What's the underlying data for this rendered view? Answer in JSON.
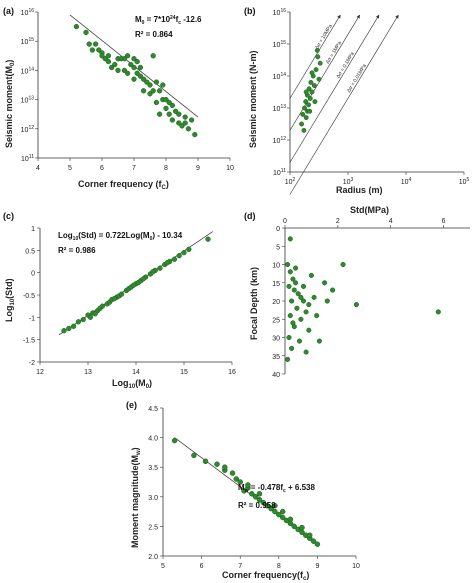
{
  "chart_data": [
    {
      "panel": "(a)",
      "type": "scatter",
      "xlabel": "Corner frequency (fc)",
      "ylabel": "Seismic moment(M0)",
      "xlim": [
        4,
        10
      ],
      "xticks": [
        "4",
        "5",
        "6",
        "7",
        "8",
        "9",
        "10"
      ],
      "ylim_log10": [
        11,
        16
      ],
      "yticks": [
        "10^11",
        "10^12",
        "10^13",
        "10^14",
        "10^15",
        "10^16"
      ],
      "y_scale": "log",
      "annotations": [
        "M0 = 7*10^24fc -12.6",
        "R² = 0.864"
      ],
      "points": [
        [
          5.2,
          15.5
        ],
        [
          5.5,
          15.3
        ],
        [
          5.6,
          14.9
        ],
        [
          5.7,
          14.7
        ],
        [
          5.8,
          14.9
        ],
        [
          5.9,
          14.7
        ],
        [
          6.0,
          14.6
        ],
        [
          6.0,
          14.5
        ],
        [
          6.1,
          14.4
        ],
        [
          6.2,
          14.5
        ],
        [
          6.2,
          14.3
        ],
        [
          6.3,
          14.1
        ],
        [
          6.4,
          14.2
        ],
        [
          6.5,
          14.0
        ],
        [
          6.5,
          14.4
        ],
        [
          6.6,
          14.4
        ],
        [
          6.7,
          14.0
        ],
        [
          6.7,
          14.4
        ],
        [
          6.8,
          14.5
        ],
        [
          6.9,
          14.2
        ],
        [
          7.0,
          14.4
        ],
        [
          7.0,
          14.1
        ],
        [
          7.1,
          13.9
        ],
        [
          7.1,
          14.3
        ],
        [
          7.2,
          13.8
        ],
        [
          7.2,
          14.1
        ],
        [
          7.3,
          13.7
        ],
        [
          7.4,
          13.6
        ],
        [
          7.5,
          13.5
        ],
        [
          7.5,
          13.2
        ],
        [
          7.6,
          14.5
        ],
        [
          7.6,
          13.3
        ],
        [
          7.7,
          12.9
        ],
        [
          7.7,
          13.6
        ],
        [
          7.8,
          12.5
        ],
        [
          7.8,
          13.3
        ],
        [
          7.9,
          13.0
        ],
        [
          8.0,
          12.7
        ],
        [
          8.0,
          13.0
        ],
        [
          8.1,
          12.5
        ],
        [
          8.2,
          12.8
        ],
        [
          8.2,
          12.3
        ],
        [
          8.3,
          12.6
        ],
        [
          8.4,
          12.2
        ],
        [
          8.4,
          12.5
        ],
        [
          8.5,
          12.1
        ],
        [
          8.6,
          12.4
        ],
        [
          8.7,
          12.0
        ],
        [
          8.8,
          12.3
        ],
        [
          8.9,
          11.8
        ],
        [
          6.8,
          13.9
        ],
        [
          7.3,
          13.3
        ],
        [
          7.9,
          13.5
        ],
        [
          8.1,
          12.9
        ],
        [
          8.6,
          12.2
        ],
        [
          7.0,
          13.7
        ]
      ],
      "fit_line_log10": [
        [
          5.0,
          15.9
        ],
        [
          9.0,
          12.4
        ]
      ]
    },
    {
      "panel": "(b)",
      "type": "scatter",
      "xlabel": "Radius (m)",
      "ylabel": "Seismic moment (N-m)",
      "xlim_log10": [
        2,
        5
      ],
      "xticks": [
        "10^2",
        "10^3",
        "10^4",
        "10^5"
      ],
      "ylim_log10": [
        11,
        16
      ],
      "yticks": [
        "10^11",
        "10^12",
        "10^13",
        "10^14",
        "10^15",
        "10^16"
      ],
      "reference_lines": [
        "Δσ = 10MPa",
        "Δσ = 1MPa",
        "Δσ = 0.1MPa",
        "Δσ = 0.01MPa"
      ],
      "points": [
        [
          2.2,
          12.5
        ],
        [
          2.22,
          12.8
        ],
        [
          2.25,
          13.0
        ],
        [
          2.27,
          13.2
        ],
        [
          2.28,
          12.7
        ],
        [
          2.3,
          13.4
        ],
        [
          2.3,
          12.9
        ],
        [
          2.32,
          13.1
        ],
        [
          2.33,
          13.6
        ],
        [
          2.35,
          13.3
        ],
        [
          2.36,
          13.8
        ],
        [
          2.38,
          13.5
        ],
        [
          2.4,
          14.0
        ],
        [
          2.42,
          13.7
        ],
        [
          2.45,
          14.2
        ],
        [
          2.48,
          14.6
        ],
        [
          2.5,
          13.9
        ],
        [
          2.52,
          14.4
        ],
        [
          2.24,
          12.3
        ],
        [
          2.28,
          13.5
        ],
        [
          2.34,
          12.9
        ],
        [
          2.38,
          14.1
        ],
        [
          2.43,
          13.2
        ],
        [
          2.47,
          14.8
        ]
      ]
    },
    {
      "panel": "(c)",
      "type": "scatter",
      "xlabel": "Log10(M0)",
      "ylabel": "Log10(Std)",
      "xlim": [
        12,
        16
      ],
      "xticks": [
        "12",
        "13",
        "14",
        "15",
        "16"
      ],
      "ylim": [
        -2,
        1
      ],
      "yticks": [
        "-2",
        "-1.5",
        "-1",
        "-0.5",
        "0",
        "0.5",
        "1"
      ],
      "annotations": [
        "Log10(Std) = 0.722Log(M0) - 10.34",
        "R² = 0.986"
      ],
      "points": [
        [
          12.5,
          -1.3
        ],
        [
          12.6,
          -1.25
        ],
        [
          12.7,
          -1.2
        ],
        [
          12.8,
          -1.1
        ],
        [
          12.9,
          -1.05
        ],
        [
          13.0,
          -0.95
        ],
        [
          13.05,
          -1.0
        ],
        [
          13.1,
          -0.9
        ],
        [
          13.2,
          -0.85
        ],
        [
          13.25,
          -0.8
        ],
        [
          13.3,
          -0.75
        ],
        [
          13.4,
          -0.7
        ],
        [
          13.45,
          -0.66
        ],
        [
          13.5,
          -0.6
        ],
        [
          13.6,
          -0.55
        ],
        [
          13.65,
          -0.52
        ],
        [
          13.7,
          -0.48
        ],
        [
          13.8,
          -0.4
        ],
        [
          13.85,
          -0.36
        ],
        [
          13.9,
          -0.32
        ],
        [
          14.0,
          -0.25
        ],
        [
          14.05,
          -0.22
        ],
        [
          14.1,
          -0.18
        ],
        [
          14.2,
          -0.1
        ],
        [
          14.3,
          -0.03
        ],
        [
          14.4,
          0.05
        ],
        [
          14.5,
          0.1
        ],
        [
          14.6,
          0.18
        ],
        [
          14.7,
          0.25
        ],
        [
          14.8,
          0.3
        ],
        [
          14.9,
          0.38
        ],
        [
          15.0,
          0.45
        ],
        [
          15.1,
          0.52
        ],
        [
          15.5,
          0.75
        ],
        [
          13.15,
          -0.92
        ],
        [
          13.55,
          -0.58
        ],
        [
          13.95,
          -0.28
        ],
        [
          14.15,
          -0.14
        ],
        [
          14.35,
          0.02
        ],
        [
          14.65,
          0.22
        ]
      ],
      "fit_line": [
        [
          12.4,
          -1.39
        ],
        [
          15.6,
          0.92
        ]
      ]
    },
    {
      "panel": "(d)",
      "type": "scatter",
      "xlabel": "Std(MPa)",
      "ylabel": "Focal Depth (km)",
      "xlim": [
        0,
        7
      ],
      "xticks": [
        "0",
        "2",
        "4",
        "6"
      ],
      "ylim": [
        0,
        40
      ],
      "yticks": [
        "0",
        "5",
        "10",
        "15",
        "20",
        "25",
        "30",
        "35",
        "40"
      ],
      "points": [
        [
          0.2,
          3
        ],
        [
          0.1,
          10
        ],
        [
          0.2,
          12
        ],
        [
          0.3,
          14
        ],
        [
          0.4,
          15
        ],
        [
          0.15,
          16
        ],
        [
          0.35,
          17
        ],
        [
          0.5,
          18
        ],
        [
          0.6,
          19
        ],
        [
          0.25,
          20
        ],
        [
          0.7,
          20
        ],
        [
          0.9,
          21
        ],
        [
          1.1,
          19
        ],
        [
          0.45,
          22
        ],
        [
          0.8,
          23
        ],
        [
          0.2,
          24
        ],
        [
          1.2,
          24
        ],
        [
          0.6,
          25
        ],
        [
          0.35,
          27
        ],
        [
          0.9,
          28
        ],
        [
          0.15,
          30
        ],
        [
          0.55,
          31
        ],
        [
          1.3,
          31
        ],
        [
          0.25,
          33
        ],
        [
          0.8,
          34
        ],
        [
          0.1,
          36
        ],
        [
          1.5,
          15
        ],
        [
          1.8,
          17
        ],
        [
          2.2,
          10
        ],
        [
          2.7,
          21
        ],
        [
          5.8,
          23
        ],
        [
          0.4,
          11
        ],
        [
          1.0,
          13
        ],
        [
          0.7,
          16
        ],
        [
          0.3,
          26
        ],
        [
          1.6,
          20
        ]
      ]
    },
    {
      "panel": "(e)",
      "type": "scatter",
      "xlabel": "Corner frequency(fc)",
      "ylabel": "Moment magnitude(Mw)",
      "xlim": [
        5,
        10
      ],
      "xticks": [
        "5",
        "6",
        "7",
        "8",
        "9",
        "10"
      ],
      "ylim": [
        2.0,
        4.5
      ],
      "yticks": [
        "2.0",
        "2.5",
        "3.0",
        "3.5",
        "4.0",
        "4.5"
      ],
      "annotations": [
        "Mw = -0.478fc + 6.538",
        "R² = 0.958"
      ],
      "points": [
        [
          5.3,
          3.95
        ],
        [
          5.8,
          3.7
        ],
        [
          6.1,
          3.6
        ],
        [
          6.4,
          3.55
        ],
        [
          6.6,
          3.45
        ],
        [
          6.8,
          3.4
        ],
        [
          6.9,
          3.3
        ],
        [
          7.0,
          3.25
        ],
        [
          7.1,
          3.1
        ],
        [
          7.2,
          3.15
        ],
        [
          7.3,
          3.05
        ],
        [
          7.4,
          3.0
        ],
        [
          7.5,
          2.95
        ],
        [
          7.6,
          2.9
        ],
        [
          7.7,
          2.85
        ],
        [
          7.8,
          2.8
        ],
        [
          7.9,
          2.75
        ],
        [
          8.0,
          2.7
        ],
        [
          8.1,
          2.65
        ],
        [
          8.2,
          2.6
        ],
        [
          8.3,
          2.55
        ],
        [
          8.4,
          2.5
        ],
        [
          8.5,
          2.45
        ],
        [
          8.6,
          2.4
        ],
        [
          8.7,
          2.35
        ],
        [
          8.8,
          2.3
        ],
        [
          8.9,
          2.25
        ],
        [
          9.0,
          2.2
        ],
        [
          7.5,
          3.05
        ],
        [
          7.9,
          2.85
        ],
        [
          8.3,
          2.62
        ],
        [
          8.6,
          2.48
        ],
        [
          8.1,
          2.75
        ],
        [
          7.2,
          3.2
        ],
        [
          6.6,
          3.5
        ],
        [
          8.8,
          2.35
        ]
      ],
      "fit_line": [
        [
          5.3,
          4.0
        ],
        [
          9.0,
          2.2
        ]
      ]
    }
  ],
  "labels": {
    "a": {
      "panel": "(a)",
      "ylabel": "Seismic moment(M",
      "ylabel_sub": "0",
      "ylabel_end": ")",
      "xlabel": "Corner frequency (f",
      "xlabel_sub": "C",
      "xlabel_end": ")",
      "eq1": "M",
      "eq1_sub": "0",
      "eq1_rest": " = 7*10",
      "eq1_sup": "24",
      "eq1_end": "f",
      "eq1_end_sub": "c",
      "eq1_tail": " -12.6",
      "eq2": "R² = 0.864"
    },
    "b": {
      "panel": "(b)",
      "ylabel": "Seismic moment (N-m)",
      "xlabel": "Radius (m)",
      "lines": [
        "Δσ = 10MPa",
        "Δσ = 1MPa",
        "Δσ = 0.1MPa",
        "Δσ = 0.01MPa"
      ]
    },
    "c": {
      "panel": "(c)",
      "ylabel": "Log",
      "ylabel_sub": "10",
      "ylabel_end": "(Std)",
      "xlabel": "Log",
      "xlabel_sub": "10",
      "xlabel_end": "(M",
      "xlabel_sub2": "0",
      "xlabel_end2": ")",
      "eq1": "Log",
      "eq1_sub": "10",
      "eq1_rest": "(Std) = 0.722Log(M",
      "eq1_sub2": "0",
      "eq1_tail": ") - 10.34",
      "eq2": "R² = 0.986"
    },
    "d": {
      "panel": "(d)",
      "ylabel": "Focal Depth (km)",
      "xlabel": "Std(MPa)"
    },
    "e": {
      "panel": "(e)",
      "ylabel": "Moment magnitude(M",
      "ylabel_sub": "w",
      "ylabel_end": ")",
      "xlabel": "Corner frequency(f",
      "xlabel_sub": "c",
      "xlabel_end": ")",
      "eq1": "M",
      "eq1_sub": "w",
      "eq1_rest": " = -0.478f",
      "eq1_sub2": "c",
      "eq1_tail": " + 6.538",
      "eq2": "R² = 0.958"
    }
  },
  "colors": {
    "marker_fill": "#2f8a2f",
    "marker_edge": "#1c5e1c",
    "axis": "#333333",
    "fit_line": "#444444"
  }
}
